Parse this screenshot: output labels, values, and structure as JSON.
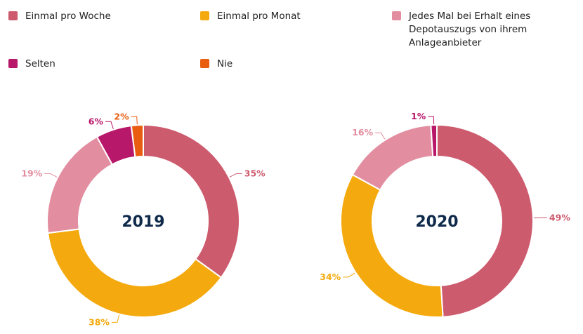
{
  "colors": {
    "einmal_pro_woche": "#cd5b6e",
    "einmal_pro_monat": "#f4aa0e",
    "jedes_mal": "#e28ea0",
    "selten": "#b8186a",
    "nie": "#e95d10"
  },
  "legend": [
    {
      "label": "Einmal pro Woche",
      "color": "#cd5b6e"
    },
    {
      "label": "Einmal pro Monat",
      "color": "#f4aa0e"
    },
    {
      "label": "Jedes Mal bei Erhalt eines Depotauszugs von ihrem Anlageanbieter",
      "color": "#e28ea0"
    },
    {
      "label": "Selten",
      "color": "#b8186a"
    },
    {
      "label": "Nie",
      "color": "#e95d10"
    }
  ],
  "chart_data": [
    {
      "type": "pie",
      "style": "donut",
      "center_label": "2019",
      "slices": [
        {
          "category": "Einmal pro Woche",
          "value": 35,
          "label": "35%"
        },
        {
          "category": "Einmal pro Monat",
          "value": 38,
          "label": "38%"
        },
        {
          "category": "Jedes Mal bei Erhalt eines Depotauszugs von ihrem Anlageanbieter",
          "value": 19,
          "label": "19%"
        },
        {
          "category": "Selten",
          "value": 6,
          "label": "6%"
        },
        {
          "category": "Nie",
          "value": 2,
          "label": "2%"
        }
      ]
    },
    {
      "type": "pie",
      "style": "donut",
      "center_label": "2020",
      "slices": [
        {
          "category": "Einmal pro Woche",
          "value": 49,
          "label": "49%"
        },
        {
          "category": "Einmal pro Monat",
          "value": 34,
          "label": "34%"
        },
        {
          "category": "Jedes Mal bei Erhalt eines Depotauszugs von ihrem Anlageanbieter",
          "value": 16,
          "label": "16%"
        },
        {
          "category": "Selten",
          "value": 1,
          "label": "1%"
        }
      ]
    }
  ]
}
